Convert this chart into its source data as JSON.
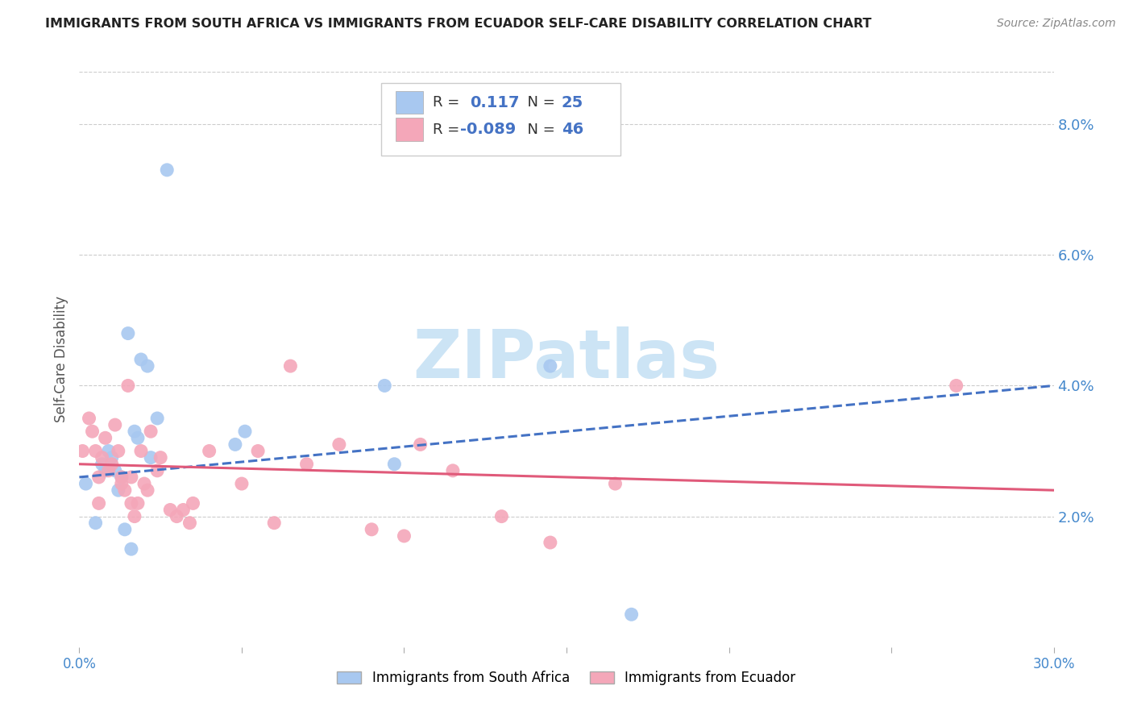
{
  "title": "IMMIGRANTS FROM SOUTH AFRICA VS IMMIGRANTS FROM ECUADOR SELF-CARE DISABILITY CORRELATION CHART",
  "source": "Source: ZipAtlas.com",
  "ylabel": "Self-Care Disability",
  "xlim": [
    0.0,
    0.3
  ],
  "ylim": [
    0.0,
    0.088
  ],
  "x_tick_positions": [
    0.0,
    0.05,
    0.1,
    0.15,
    0.2,
    0.25,
    0.3
  ],
  "x_tick_labels_show": {
    "0.0": "0.0%",
    "0.30": "30.0%"
  },
  "yticks_right": [
    0.02,
    0.04,
    0.06,
    0.08
  ],
  "grid_color": "#cccccc",
  "background_color": "#ffffff",
  "series": [
    {
      "label": "Immigrants from South Africa",
      "color": "#a8c8f0",
      "R": 0.117,
      "N": 25,
      "x": [
        0.002,
        0.005,
        0.007,
        0.008,
        0.009,
        0.01,
        0.011,
        0.012,
        0.013,
        0.014,
        0.015,
        0.016,
        0.017,
        0.018,
        0.019,
        0.021,
        0.022,
        0.024,
        0.027,
        0.048,
        0.051,
        0.094,
        0.097,
        0.145,
        0.17
      ],
      "y": [
        0.025,
        0.019,
        0.028,
        0.027,
        0.03,
        0.029,
        0.027,
        0.024,
        0.026,
        0.018,
        0.048,
        0.015,
        0.033,
        0.032,
        0.044,
        0.043,
        0.029,
        0.035,
        0.073,
        0.031,
        0.033,
        0.04,
        0.028,
        0.043,
        0.005
      ],
      "trend_color": "#4472c4",
      "trend_style": "--",
      "trend_x": [
        0.0,
        0.3
      ],
      "trend_y": [
        0.026,
        0.04
      ]
    },
    {
      "label": "Immigrants from Ecuador",
      "color": "#f4a7b9",
      "R": -0.089,
      "N": 46,
      "x": [
        0.001,
        0.003,
        0.004,
        0.005,
        0.006,
        0.006,
        0.007,
        0.008,
        0.009,
        0.01,
        0.011,
        0.012,
        0.013,
        0.013,
        0.014,
        0.015,
        0.016,
        0.016,
        0.017,
        0.018,
        0.019,
        0.02,
        0.021,
        0.022,
        0.024,
        0.025,
        0.028,
        0.03,
        0.032,
        0.034,
        0.035,
        0.04,
        0.05,
        0.055,
        0.06,
        0.065,
        0.07,
        0.08,
        0.09,
        0.1,
        0.105,
        0.115,
        0.13,
        0.145,
        0.165,
        0.27
      ],
      "y": [
        0.03,
        0.035,
        0.033,
        0.03,
        0.026,
        0.022,
        0.029,
        0.032,
        0.027,
        0.028,
        0.034,
        0.03,
        0.026,
        0.025,
        0.024,
        0.04,
        0.022,
        0.026,
        0.02,
        0.022,
        0.03,
        0.025,
        0.024,
        0.033,
        0.027,
        0.029,
        0.021,
        0.02,
        0.021,
        0.019,
        0.022,
        0.03,
        0.025,
        0.03,
        0.019,
        0.043,
        0.028,
        0.031,
        0.018,
        0.017,
        0.031,
        0.027,
        0.02,
        0.016,
        0.025,
        0.04
      ],
      "trend_color": "#e05a7a",
      "trend_style": "-",
      "trend_x": [
        0.0,
        0.3
      ],
      "trend_y": [
        0.028,
        0.024
      ]
    }
  ],
  "watermark_text": "ZIPatlas",
  "watermark_color": "#cce4f5",
  "title_color": "#222222",
  "axis_label_color": "#555555",
  "right_axis_color": "#4488cc",
  "legend_R_color": "#4472c4",
  "legend_N_color": "#333333",
  "bottom_label_sa": "Immigrants from South Africa",
  "bottom_label_ec": "Immigrants from Ecuador"
}
